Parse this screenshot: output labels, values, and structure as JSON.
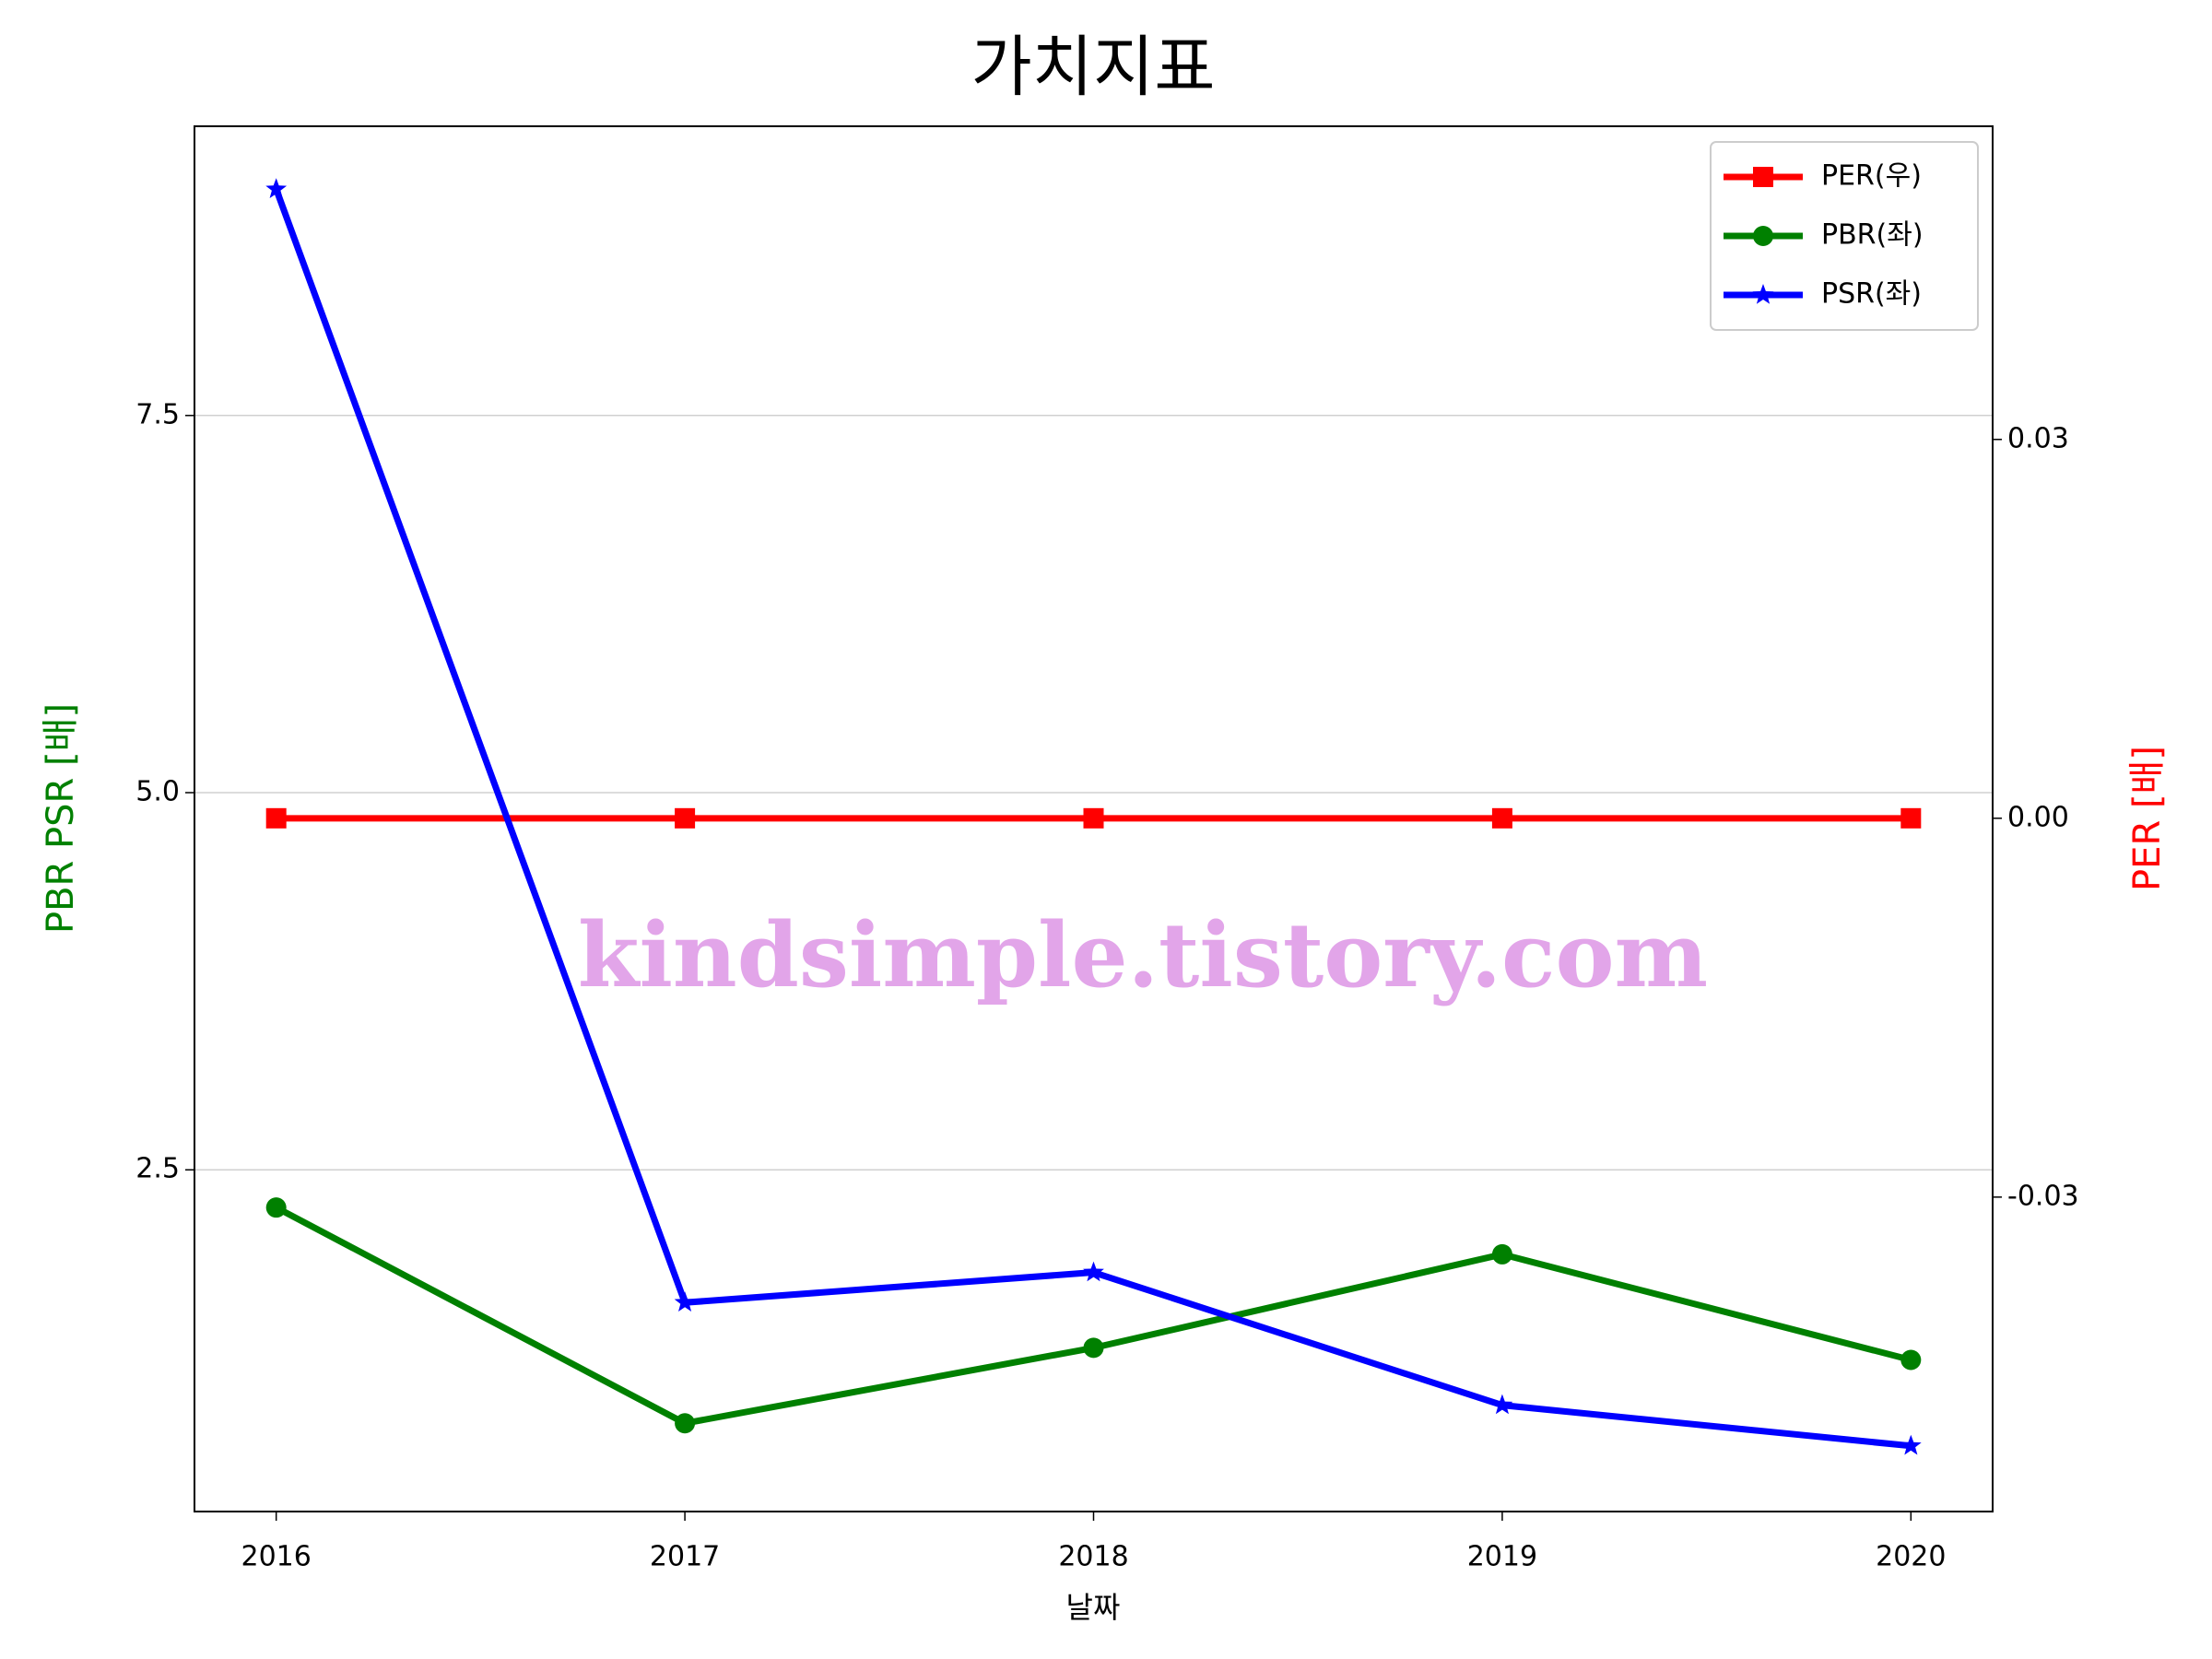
{
  "chart_data": {
    "type": "line",
    "title": "가치지표",
    "x_label": "날짜",
    "y_label": "PBR PSR [배]",
    "y2_label": "PER [배]",
    "annotation": "kindsimple.tistory.com",
    "x": [
      2016,
      2017,
      2018,
      2019,
      2020
    ],
    "xlim": [
      2015.8,
      2020.2
    ],
    "xticks": [
      2016,
      2017,
      2018,
      2019,
      2020
    ],
    "ylim": [
      0.235,
      9.417
    ],
    "yticks": [
      {
        "value": 2.5,
        "label": "2.5"
      },
      {
        "value": 5,
        "label": "5.0"
      },
      {
        "value": 7.5,
        "label": "7.5"
      }
    ],
    "y2lim": [
      -0.0549,
      0.0548
    ],
    "y2ticks": [
      -0.03,
      {
        "value": 0,
        "label": "0.00"
      },
      0.03
    ],
    "grid": true,
    "legend": "upper right",
    "series": [
      {
        "name": "PER(우)",
        "color": "#ff0000",
        "marker": "square",
        "axis": "y2",
        "values": [
          0,
          0,
          0,
          0,
          0
        ]
      },
      {
        "name": "PBR(좌)",
        "color": "#008000",
        "marker": "circle",
        "values": [
          2.25,
          0.82,
          1.32,
          1.94,
          1.24
        ]
      },
      {
        "name": "PSR(좌)",
        "color": "#0000ff",
        "marker": "star",
        "values": [
          9.0,
          1.62,
          1.82,
          0.94,
          0.67
        ]
      }
    ]
  }
}
